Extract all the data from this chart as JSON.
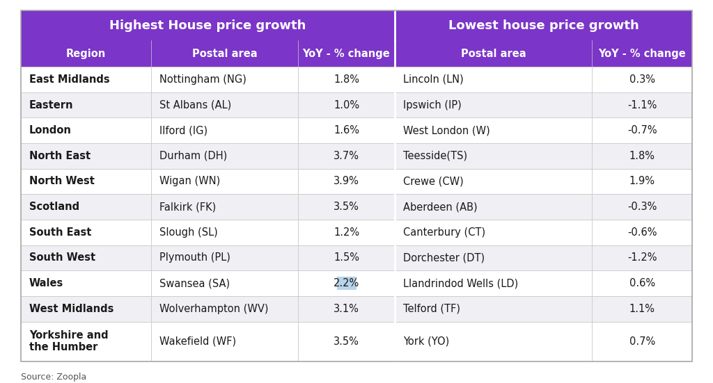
{
  "title_left": "Highest House price growth",
  "title_right": "Lowest house price growth",
  "header_cols": [
    "Region",
    "Postal area",
    "YoY - % change",
    "Postal area",
    "YoY - % change"
  ],
  "rows": [
    [
      "East Midlands",
      "Nottingham (NG)",
      "1.8%",
      "Lincoln (LN)",
      "0.3%"
    ],
    [
      "Eastern",
      "St Albans (AL)",
      "1.0%",
      "Ipswich (IP)",
      "-1.1%"
    ],
    [
      "London",
      "Ilford (IG)",
      "1.6%",
      "West London (W)",
      "-0.7%"
    ],
    [
      "North East",
      "Durham (DH)",
      "3.7%",
      "Teesside(TS)",
      "1.8%"
    ],
    [
      "North West",
      "Wigan (WN)",
      "3.9%",
      "Crewe (CW)",
      "1.9%"
    ],
    [
      "Scotland",
      "Falkirk (FK)",
      "3.5%",
      "Aberdeen (AB)",
      "-0.3%"
    ],
    [
      "South East",
      "Slough (SL)",
      "1.2%",
      "Canterbury (CT)",
      "-0.6%"
    ],
    [
      "South West",
      "Plymouth (PL)",
      "1.5%",
      "Dorchester (DT)",
      "-1.2%"
    ],
    [
      "Wales",
      "Swansea (SA)",
      "2.2%",
      "Llandrindod Wells (LD)",
      "0.6%"
    ],
    [
      "West Midlands",
      "Wolverhampton (WV)",
      "3.1%",
      "Telford (TF)",
      "1.1%"
    ],
    [
      "Yorkshire and\nthe Humber",
      "Wakefield (WF)",
      "3.5%",
      "York (YO)",
      "0.7%"
    ]
  ],
  "source": "Source: Zoopla",
  "purple": "#7B35C8",
  "row_bg_odd": "#F0EFF4",
  "row_bg_even": "#FFFFFF",
  "border_color": "#CCCCCC",
  "text_dark": "#1A1A1A",
  "text_white": "#FFFFFF",
  "fig_bg": "#FFFFFF",
  "wales_highlight_color": "#B8D4EA"
}
